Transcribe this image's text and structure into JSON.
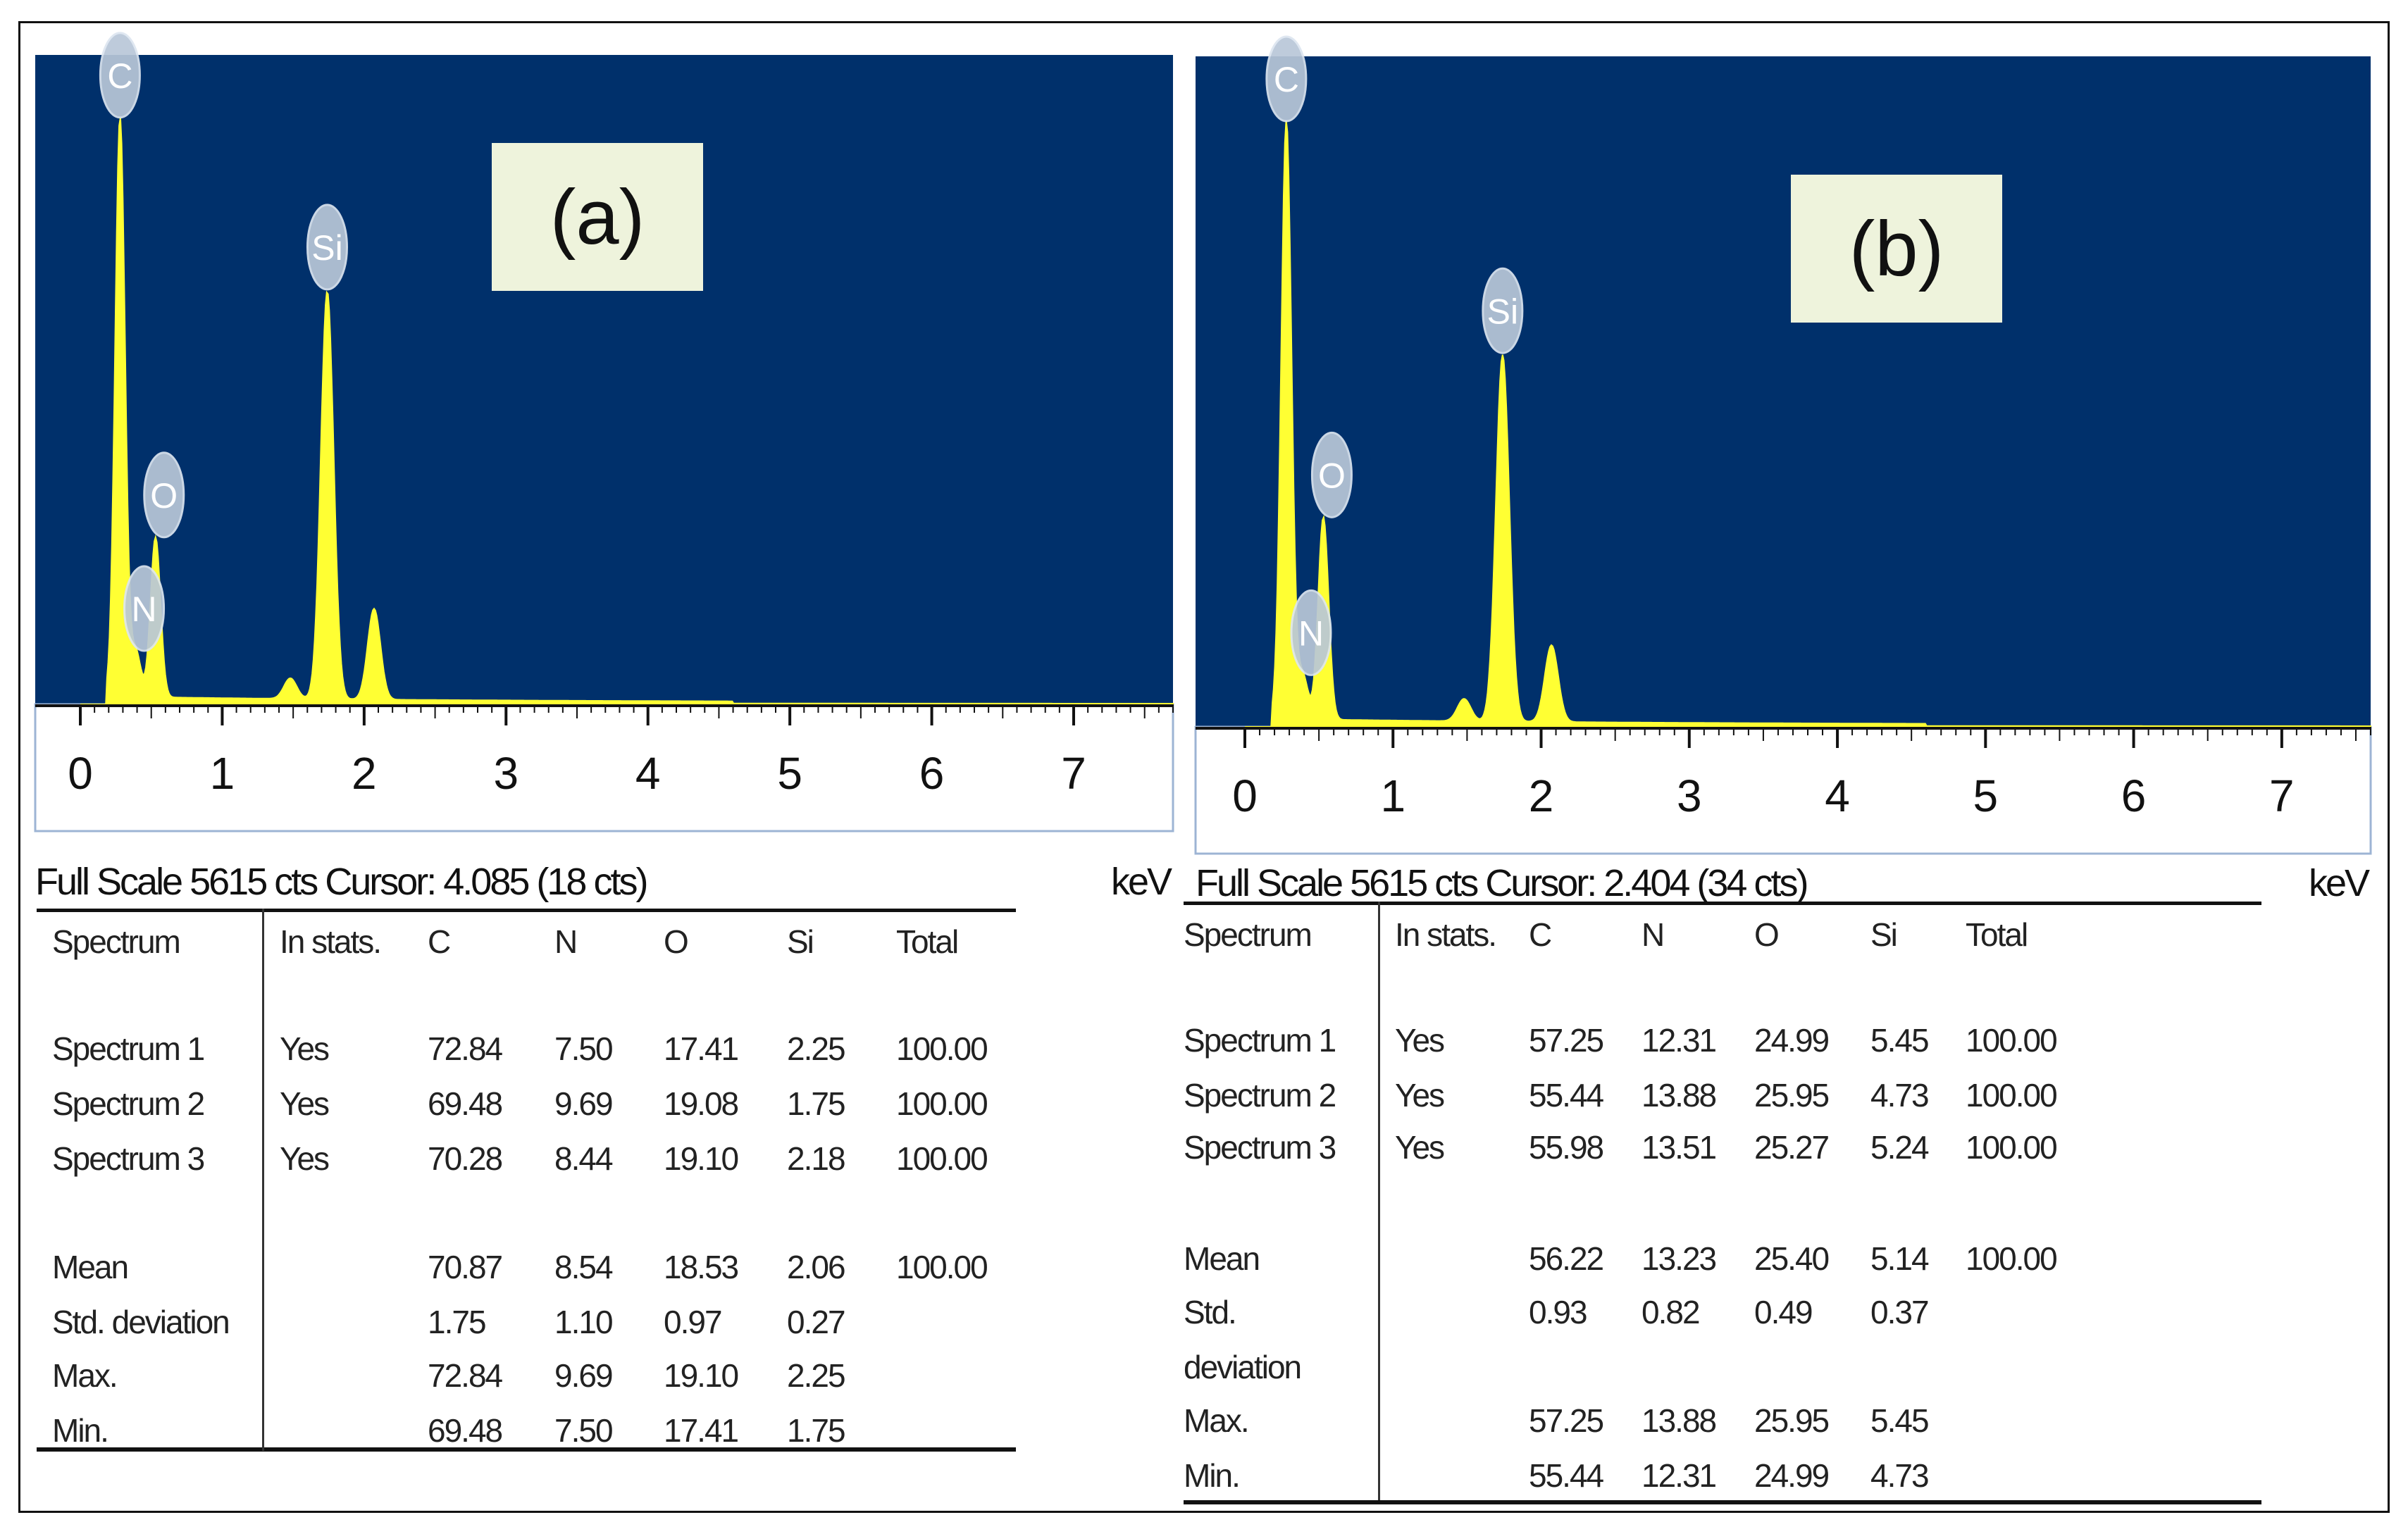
{
  "chart_data": [
    {
      "type": "line",
      "panel_label": "(a)",
      "xlabel": "keV",
      "xlim": [
        0,
        7.7
      ],
      "x_ticks": [
        "0",
        "1",
        "2",
        "3",
        "4",
        "5",
        "6",
        "7"
      ],
      "readout": "Full Scale 5615 cts Cursor: 4.085  (18 cts)",
      "peaks": [
        {
          "element": "C",
          "energy": 0.28,
          "counts": 5615
        },
        {
          "element": "N",
          "energy": 0.39,
          "counts": 450
        },
        {
          "element": "O",
          "energy": 0.53,
          "counts": 1550
        },
        {
          "element": "Si",
          "energy": 1.74,
          "counts": 3950
        },
        {
          "element": "",
          "energy": 2.07,
          "counts": 880
        },
        {
          "element": "",
          "energy": 1.48,
          "counts": 200
        }
      ],
      "colors": {
        "background": "#00306b",
        "spectrum": "#ffff33",
        "label_box": "#eef3dc"
      }
    },
    {
      "type": "line",
      "panel_label": "(b)",
      "xlabel": "keV",
      "xlim": [
        0,
        7.6
      ],
      "x_ticks": [
        "0",
        "1",
        "2",
        "3",
        "4",
        "5",
        "6",
        "7"
      ],
      "readout": "Full Scale 5615 cts Cursor: 2.404  (34 cts)",
      "peaks": [
        {
          "element": "C",
          "energy": 0.28,
          "counts": 5615
        },
        {
          "element": "N",
          "energy": 0.39,
          "counts": 420
        },
        {
          "element": "O",
          "energy": 0.53,
          "counts": 1900
        },
        {
          "element": "Si",
          "energy": 1.74,
          "counts": 3440
        },
        {
          "element": "",
          "energy": 2.07,
          "counts": 720
        },
        {
          "element": "",
          "energy": 1.48,
          "counts": 210
        }
      ],
      "colors": {
        "background": "#00306b",
        "spectrum": "#ffff33",
        "label_box": "#eef3dc"
      }
    }
  ],
  "table_a": {
    "headers": [
      "Spectrum",
      "In stats.",
      "C",
      "N",
      "O",
      "Si",
      "Total"
    ],
    "rows": [
      [
        "Spectrum 1",
        "Yes",
        "72.84",
        "7.50",
        "17.41",
        "2.25",
        "100.00"
      ],
      [
        "Spectrum 2",
        "Yes",
        "69.48",
        "9.69",
        "19.08",
        "1.75",
        "100.00"
      ],
      [
        "Spectrum 3",
        "Yes",
        "70.28",
        "8.44",
        "19.10",
        "2.18",
        "100.00"
      ]
    ],
    "stats": [
      [
        "Mean",
        "",
        "70.87",
        "8.54",
        "18.53",
        "2.06",
        "100.00"
      ],
      [
        "Std. deviation",
        "",
        "1.75",
        "1.10",
        "0.97",
        "0.27",
        ""
      ],
      [
        "Max.",
        "",
        "72.84",
        "9.69",
        "19.10",
        "2.25",
        ""
      ],
      [
        "Min.",
        "",
        "69.48",
        "7.50",
        "17.41",
        "1.75",
        ""
      ]
    ]
  },
  "table_b": {
    "headers": [
      "Spectrum",
      "In stats.",
      "C",
      "N",
      "O",
      "Si",
      "Total"
    ],
    "rows": [
      [
        "Spectrum 1",
        "Yes",
        "57.25",
        "12.31",
        "24.99",
        "5.45",
        "100.00"
      ],
      [
        "Spectrum 2",
        "Yes",
        "55.44",
        "13.88",
        "25.95",
        "4.73",
        "100.00"
      ],
      [
        "Spectrum 3",
        "Yes",
        "55.98",
        "13.51",
        "25.27",
        "5.24",
        "100.00"
      ]
    ],
    "stats": [
      [
        "Mean",
        "",
        "56.22",
        "13.23",
        "25.40",
        "5.14",
        "100.00"
      ],
      [
        "Std.",
        "",
        "0.93",
        "0.82",
        "0.49",
        "0.37",
        ""
      ],
      [
        "deviation",
        "",
        "",
        "",
        "",
        "",
        ""
      ],
      [
        "Max.",
        "",
        "57.25",
        "13.88",
        "25.95",
        "5.45",
        ""
      ],
      [
        "Min.",
        "",
        "55.44",
        "12.31",
        "24.99",
        "4.73",
        ""
      ]
    ]
  }
}
